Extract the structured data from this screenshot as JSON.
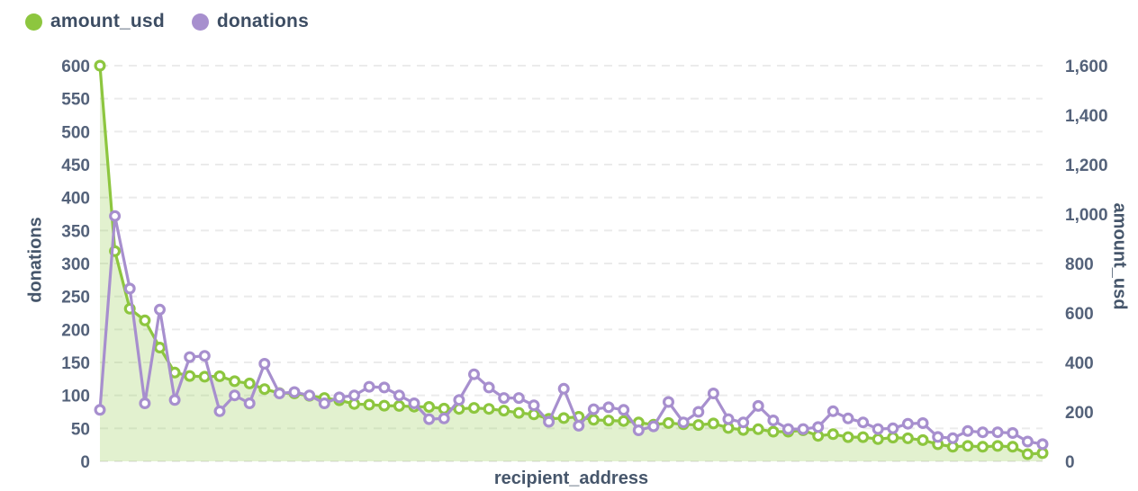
{
  "legend": {
    "items": [
      {
        "label": "amount_usd",
        "color": "#8dc63f"
      },
      {
        "label": "donations",
        "color": "#a78fce"
      }
    ]
  },
  "chart_data": {
    "type": "line",
    "legend_position": "top-left",
    "grid": "horizontal-dashed",
    "x_axis": {
      "title": "recipient_address",
      "tick_labels_visible": false,
      "point_count": 64
    },
    "left_axis": {
      "title": "donations",
      "min": 0,
      "max": 600,
      "grid_step": 50,
      "tick_labels": [
        "0",
        "50",
        "100",
        "150",
        "200",
        "250",
        "300",
        "350",
        "400",
        "450",
        "500",
        "550",
        "600"
      ]
    },
    "right_axis": {
      "title": "amount_usd",
      "min": 0,
      "max": 1600,
      "tick_labels": [
        "0",
        "200",
        "400",
        "600",
        "800",
        "1,000",
        "1,200",
        "1,400",
        "1,600"
      ]
    },
    "series": [
      {
        "name": "amount_usd",
        "axis": "right",
        "style": "area-line",
        "color": "#8dc63f",
        "area_fill": "rgba(141,198,63,0.25)",
        "marker": "open-circle",
        "values": [
          1600,
          850,
          617,
          570,
          460,
          359,
          345,
          342,
          344,
          324,
          315,
          292,
          276,
          275,
          265,
          256,
          247,
          232,
          229,
          225,
          224,
          221,
          220,
          213,
          212,
          216,
          212,
          205,
          196,
          190,
          172,
          175,
          180,
          168,
          165,
          163,
          157,
          148,
          155,
          150,
          147,
          153,
          135,
          127,
          130,
          120,
          120,
          126,
          103,
          110,
          98,
          98,
          90,
          96,
          93,
          86,
          69,
          59,
          62,
          59,
          62,
          59,
          29,
          33
        ]
      },
      {
        "name": "donations",
        "axis": "left",
        "style": "line",
        "color": "#a78fce",
        "marker": "open-circle",
        "values": [
          78,
          372,
          262,
          88,
          230,
          93,
          158,
          160,
          76,
          100,
          88,
          148,
          103,
          105,
          100,
          88,
          97,
          100,
          113,
          112,
          100,
          88,
          64,
          65,
          93,
          132,
          112,
          96,
          96,
          85,
          60,
          110,
          54,
          79,
          82,
          78,
          47,
          53,
          90,
          59,
          75,
          103,
          64,
          59,
          84,
          62,
          49,
          49,
          52,
          76,
          65,
          59,
          49,
          50,
          57,
          58,
          37,
          35,
          46,
          44,
          44,
          43,
          30,
          26
        ]
      }
    ]
  },
  "colors": {
    "tick_text": "#54627a",
    "axis_title_text": "#46566b",
    "legend_text": "#3d4d63",
    "gridline": "rgba(110,110,110,0.14)",
    "background": "#ffffff"
  }
}
